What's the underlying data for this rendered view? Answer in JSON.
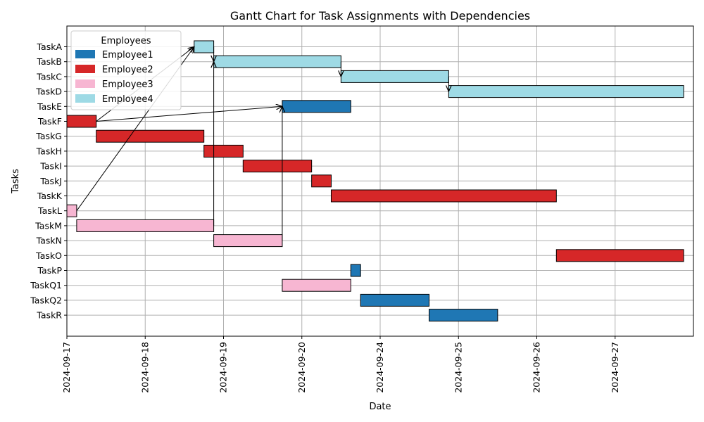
{
  "chart_data": {
    "type": "gantt",
    "title": "Gantt Chart for Task Assignments with Dependencies",
    "xlabel": "Date",
    "ylabel": "Tasks",
    "x_ticks": [
      "2024-09-17",
      "2024-09-18",
      "2024-09-19",
      "2024-09-20",
      "2024-09-24",
      "2024-09-25",
      "2024-09-26",
      "2024-09-27"
    ],
    "x_range": [
      0,
      8.0
    ],
    "grid": true,
    "legend": {
      "title": "Employees",
      "placement": "top-left",
      "entries": [
        {
          "name": "Employee1",
          "color": "#1f77b4"
        },
        {
          "name": "Employee2",
          "color": "#d62728"
        },
        {
          "name": "Employee3",
          "color": "#f7b6d2"
        },
        {
          "name": "Employee4",
          "color": "#9edae5"
        }
      ]
    },
    "tasks": [
      {
        "name": "TaskA",
        "start": 1.625,
        "end": 1.875,
        "employee": "Employee4"
      },
      {
        "name": "TaskB",
        "start": 1.875,
        "end": 3.5,
        "employee": "Employee4"
      },
      {
        "name": "TaskC",
        "start": 3.5,
        "end": 4.875,
        "employee": "Employee4"
      },
      {
        "name": "TaskD",
        "start": 4.875,
        "end": 7.875,
        "employee": "Employee4"
      },
      {
        "name": "TaskE",
        "start": 2.75,
        "end": 3.625,
        "employee": "Employee1"
      },
      {
        "name": "TaskF",
        "start": 0.0,
        "end": 0.375,
        "employee": "Employee2"
      },
      {
        "name": "TaskG",
        "start": 0.375,
        "end": 1.75,
        "employee": "Employee2"
      },
      {
        "name": "TaskH",
        "start": 1.75,
        "end": 2.25,
        "employee": "Employee2"
      },
      {
        "name": "TaskI",
        "start": 2.25,
        "end": 3.125,
        "employee": "Employee2"
      },
      {
        "name": "TaskJ",
        "start": 3.125,
        "end": 3.375,
        "employee": "Employee2"
      },
      {
        "name": "TaskK",
        "start": 3.375,
        "end": 6.25,
        "employee": "Employee2"
      },
      {
        "name": "TaskL",
        "start": 0.0,
        "end": 0.125,
        "employee": "Employee3"
      },
      {
        "name": "TaskM",
        "start": 0.125,
        "end": 1.875,
        "employee": "Employee3"
      },
      {
        "name": "TaskN",
        "start": 1.875,
        "end": 2.75,
        "employee": "Employee3"
      },
      {
        "name": "TaskO",
        "start": 6.25,
        "end": 7.875,
        "employee": "Employee2"
      },
      {
        "name": "TaskP",
        "start": 3.625,
        "end": 3.75,
        "employee": "Employee1"
      },
      {
        "name": "TaskQ1",
        "start": 2.75,
        "end": 3.625,
        "employee": "Employee3"
      },
      {
        "name": "TaskQ2",
        "start": 3.75,
        "end": 4.625,
        "employee": "Employee1"
      },
      {
        "name": "TaskR",
        "start": 4.625,
        "end": 5.5,
        "employee": "Employee1"
      }
    ],
    "dependencies": [
      {
        "from": "TaskA",
        "to": "TaskB"
      },
      {
        "from": "TaskB",
        "to": "TaskC"
      },
      {
        "from": "TaskC",
        "to": "TaskD"
      },
      {
        "from": "TaskF",
        "to": "TaskA"
      },
      {
        "from": "TaskF",
        "to": "TaskE"
      },
      {
        "from": "TaskL",
        "to": "TaskA"
      },
      {
        "from": "TaskM",
        "to": "TaskB"
      },
      {
        "from": "TaskN",
        "to": "TaskE"
      }
    ]
  }
}
